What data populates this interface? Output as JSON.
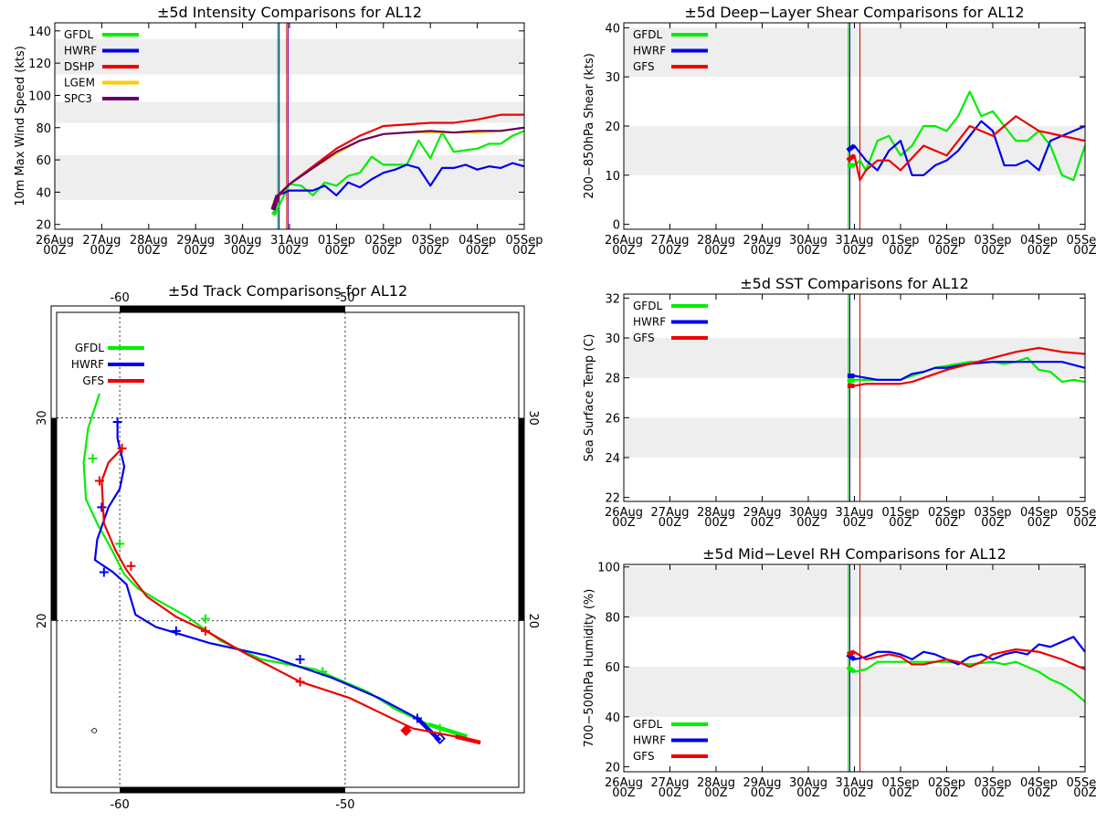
{
  "x_labels": [
    "26Aug",
    "27Aug",
    "28Aug",
    "29Aug",
    "30Aug",
    "31Aug",
    "01Sep",
    "02Sep",
    "03Sep",
    "04Sep",
    "05Sep"
  ],
  "x_label_hour": "00Z",
  "colors": {
    "GFDL": "#00ee00",
    "HWRF": "#0000ee",
    "DSHP": "#ee0000",
    "LGEM": "#ffcc00",
    "SPC3": "#660066",
    "GFS": "#ee0000"
  },
  "chart_data": [
    {
      "type": "line",
      "title": "±5d Intensity Comparisons for AL12",
      "ylabel": "10m Max Wind Speed (kts)",
      "xlabel": "",
      "ylim": [
        17,
        145
      ],
      "yticks": [
        20,
        40,
        60,
        80,
        100,
        120,
        140
      ],
      "bands": [
        [
          35,
          63
        ],
        [
          83,
          96
        ],
        [
          113,
          135
        ]
      ],
      "vlines": [
        {
          "x": 4.75,
          "color": "#00aa00"
        },
        {
          "x": 4.78,
          "color": "#0000cc"
        },
        {
          "x": 4.94,
          "color": "#cc0000"
        },
        {
          "x": 4.97,
          "color": "#880088"
        }
      ],
      "legend": [
        "GFDL",
        "HWRF",
        "DSHP",
        "LGEM",
        "SPC3"
      ],
      "series": [
        {
          "name": "GFDL",
          "x": [
            4.65,
            4.75,
            5.0,
            5.25,
            5.5,
            5.75,
            6.0,
            6.25,
            6.5,
            6.75,
            7.0,
            7.25,
            7.5,
            7.75,
            8.0,
            8.25,
            8.5,
            8.75,
            9.0,
            9.25,
            9.5,
            9.75,
            10.0
          ],
          "y": [
            26,
            30,
            45,
            44,
            38,
            46,
            44,
            50,
            52,
            62,
            57,
            57,
            57,
            72,
            61,
            77,
            65,
            66,
            67,
            70,
            70,
            75,
            78
          ]
        },
        {
          "name": "HWRF",
          "x": [
            4.65,
            4.75,
            5.0,
            5.25,
            5.5,
            5.75,
            6.0,
            6.25,
            6.5,
            6.75,
            7.0,
            7.25,
            7.5,
            7.75,
            8.0,
            8.25,
            8.5,
            8.75,
            9.0,
            9.25,
            9.5,
            9.75,
            10.0
          ],
          "y": [
            29,
            38,
            41,
            41,
            41,
            44,
            38,
            46,
            43,
            48,
            52,
            54,
            57,
            55,
            44,
            55,
            55,
            57,
            54,
            56,
            55,
            58,
            56
          ]
        },
        {
          "name": "DSHP",
          "x": [
            4.65,
            4.75,
            5.0,
            5.5,
            6.0,
            6.5,
            7.0,
            7.5,
            8.0,
            8.5,
            9.0,
            9.5,
            10.0
          ],
          "y": [
            30,
            37,
            45,
            56,
            67,
            75,
            81,
            82,
            83,
            83,
            85,
            88,
            88
          ]
        },
        {
          "name": "LGEM",
          "x": [
            4.65,
            4.75,
            5.0,
            5.5,
            6.0,
            6.5,
            7.0,
            7.5,
            8.0,
            8.5,
            9.0,
            9.5,
            10.0
          ],
          "y": [
            29,
            38,
            45,
            55,
            64,
            72,
            76,
            77,
            77,
            77,
            77,
            78,
            80
          ]
        },
        {
          "name": "SPC3",
          "x": [
            4.65,
            4.75,
            5.0,
            5.5,
            6.0,
            6.5,
            7.0,
            7.5,
            8.0,
            8.5,
            9.0,
            9.5,
            10.0
          ],
          "y": [
            29,
            38,
            45,
            55,
            65,
            72,
            76,
            77,
            78,
            77,
            78,
            78,
            80
          ]
        }
      ]
    },
    {
      "type": "line",
      "title": "±5d Deep−Layer Shear Comparisons for AL12",
      "ylabel": "200−850hPa Shear (kts)",
      "xlabel": "",
      "ylim": [
        -1,
        41
      ],
      "yticks": [
        0,
        10,
        20,
        30,
        40
      ],
      "bands": [
        [
          10,
          20
        ],
        [
          30,
          40
        ]
      ],
      "vlines": [
        {
          "x": 4.87,
          "color": "#00aa00"
        },
        {
          "x": 4.9,
          "color": "#0000cc"
        },
        {
          "x": 5.12,
          "color": "#cc0000"
        }
      ],
      "legend": [
        "GFDL",
        "HWRF",
        "GFS"
      ],
      "series": [
        {
          "name": "GFDL",
          "x": [
            4.85,
            5.0,
            5.12,
            5.25,
            5.5,
            5.75,
            6.0,
            6.25,
            6.5,
            6.75,
            7.0,
            7.25,
            7.5,
            7.75,
            8.0,
            8.25,
            8.5,
            8.75,
            9.0,
            9.25,
            9.5,
            9.75,
            10.0
          ],
          "y": [
            12,
            12,
            13,
            11,
            17,
            18,
            14,
            16,
            20,
            20,
            19,
            22,
            27,
            22,
            23,
            20,
            17,
            17,
            19,
            16,
            10,
            9,
            16
          ]
        },
        {
          "name": "HWRF",
          "x": [
            4.85,
            5.0,
            5.25,
            5.5,
            5.75,
            6.0,
            6.25,
            6.5,
            6.75,
            7.0,
            7.25,
            7.5,
            7.75,
            8.0,
            8.25,
            8.5,
            8.75,
            9.0,
            9.25,
            9.5,
            9.75,
            10.0
          ],
          "y": [
            15,
            16,
            13,
            11,
            15,
            17,
            10,
            10,
            12,
            13,
            15,
            18,
            21,
            19,
            12,
            12,
            13,
            11,
            17,
            18,
            19,
            20
          ]
        },
        {
          "name": "GFS",
          "x": [
            4.85,
            5.0,
            5.12,
            5.25,
            5.5,
            5.75,
            6.0,
            6.5,
            7.0,
            7.5,
            8.0,
            8.5,
            9.0,
            9.5,
            10.0
          ],
          "y": [
            13,
            14,
            9,
            11,
            13,
            13,
            11,
            16,
            14,
            20,
            18,
            22,
            19,
            18,
            17
          ]
        }
      ]
    },
    {
      "type": "line",
      "title": "±5d Track Comparisons for AL12",
      "xlabel": "",
      "ylabel": "",
      "xlim": [
        -62.8,
        -42.3
      ],
      "ylim": [
        11.8,
        35.2
      ],
      "lon_ticks": [
        -60,
        -50
      ],
      "lat_ticks": [
        20,
        30
      ],
      "legend": [
        "GFDL",
        "HWRF",
        "GFS"
      ],
      "series": [
        {
          "name": "GFDL",
          "lon": [
            -60.9,
            -61.4,
            -61.6,
            -61.5,
            -61.0,
            -60.4,
            -59.8,
            -59.2,
            -58.3,
            -57.0,
            -55.5,
            -53.7,
            -51.3,
            -49.0,
            -47.7,
            -46.3,
            -44.6
          ],
          "lat": [
            31.2,
            29.5,
            27.8,
            26.0,
            24.8,
            23.6,
            22.3,
            21.6,
            21.0,
            20.2,
            19.0,
            18.1,
            17.6,
            16.5,
            15.6,
            14.9,
            14.3
          ],
          "markers": [
            [
              -61.2,
              28.0
            ],
            [
              -60.0,
              23.8
            ],
            [
              -56.2,
              20.1
            ],
            [
              -51.0,
              17.5
            ],
            [
              -45.8,
              14.7
            ]
          ]
        },
        {
          "name": "HWRF",
          "lon": [
            -60.1,
            -60.1,
            -59.8,
            -60.0,
            -60.5,
            -61.0,
            -61.1,
            -60.3,
            -59.7,
            -59.3,
            -58.4,
            -56.0,
            -53.5,
            -50.6,
            -48.5,
            -46.8,
            -45.8
          ],
          "lat": [
            29.8,
            29.0,
            27.6,
            26.5,
            25.6,
            24.0,
            23.0,
            22.4,
            21.8,
            20.3,
            19.7,
            18.9,
            18.3,
            17.2,
            16.2,
            15.2,
            14.1
          ],
          "markers": [
            [
              -60.1,
              29.8
            ],
            [
              -60.8,
              25.6
            ],
            [
              -60.7,
              22.4
            ],
            [
              -57.5,
              19.5
            ],
            [
              -52.0,
              18.1
            ],
            [
              -46.8,
              15.2
            ]
          ],
          "diamond": [
            -45.8,
            14.2
          ]
        },
        {
          "name": "GFS",
          "lon": [
            -59.9,
            -60.5,
            -60.8,
            -60.7,
            -60.2,
            -59.7,
            -58.8,
            -57.5,
            -56.0,
            -54.6,
            -52.0,
            -49.8,
            -47.0,
            -45.1,
            -44.0
          ],
          "lat": [
            28.5,
            27.8,
            26.9,
            24.8,
            23.5,
            22.5,
            21.2,
            20.2,
            19.4,
            18.5,
            17.0,
            16.2,
            14.7,
            14.3,
            14.0
          ],
          "markers": [
            [
              -59.9,
              28.5
            ],
            [
              -60.9,
              26.9
            ],
            [
              -59.5,
              22.7
            ],
            [
              -56.2,
              19.5
            ],
            [
              -52.0,
              17.0
            ]
          ],
          "diamond": [
            -47.3,
            14.6
          ]
        }
      ]
    },
    {
      "type": "line",
      "title": "±5d SST Comparisons for AL12",
      "ylabel": "Sea Surface Temp (C)",
      "xlabel": "",
      "ylim": [
        21.8,
        32.2
      ],
      "yticks": [
        22,
        24,
        26,
        28,
        30,
        32
      ],
      "bands": [
        [
          24,
          26
        ],
        [
          28,
          30
        ]
      ],
      "vlines": [
        {
          "x": 4.87,
          "color": "#00aa00"
        },
        {
          "x": 4.9,
          "color": "#0000cc"
        },
        {
          "x": 5.12,
          "color": "#cc0000"
        }
      ],
      "legend": [
        "GFDL",
        "HWRF",
        "GFS"
      ],
      "series": [
        {
          "name": "GFDL",
          "x": [
            4.85,
            5.0,
            5.25,
            5.5,
            5.75,
            6.0,
            6.25,
            6.5,
            6.75,
            7.0,
            7.25,
            7.5,
            7.75,
            8.0,
            8.25,
            8.5,
            8.75,
            9.0,
            9.25,
            9.5,
            9.75,
            10.0
          ],
          "y": [
            27.8,
            27.9,
            27.9,
            27.9,
            27.9,
            27.9,
            28.1,
            28.3,
            28.5,
            28.6,
            28.7,
            28.8,
            28.8,
            28.8,
            28.7,
            28.8,
            29.0,
            28.4,
            28.3,
            27.8,
            27.9,
            27.8
          ]
        },
        {
          "name": "HWRF",
          "x": [
            4.85,
            5.0,
            5.25,
            5.5,
            5.75,
            6.0,
            6.25,
            6.5,
            6.75,
            7.0,
            7.5,
            8.0,
            8.5,
            9.0,
            9.5,
            10.0
          ],
          "y": [
            28.1,
            28.1,
            28.0,
            27.9,
            27.9,
            27.9,
            28.2,
            28.3,
            28.5,
            28.5,
            28.7,
            28.8,
            28.8,
            28.8,
            28.8,
            28.5
          ]
        },
        {
          "name": "GFS",
          "x": [
            4.85,
            5.0,
            5.25,
            5.5,
            6.0,
            6.25,
            6.5,
            7.0,
            7.5,
            8.0,
            8.5,
            9.0,
            9.5,
            10.0
          ],
          "y": [
            27.6,
            27.6,
            27.7,
            27.7,
            27.7,
            27.8,
            28.0,
            28.4,
            28.7,
            29.0,
            29.3,
            29.5,
            29.3,
            29.2
          ]
        }
      ]
    },
    {
      "type": "line",
      "title": "±5d Mid−Level RH Comparisons for AL12",
      "ylabel": "700−500hPa Humidity (%)",
      "xlabel": "",
      "ylim": [
        18,
        101
      ],
      "yticks": [
        20,
        40,
        60,
        80,
        100
      ],
      "bands": [
        [
          40,
          60
        ],
        [
          80,
          100
        ]
      ],
      "vlines": [
        {
          "x": 4.87,
          "color": "#00aa00"
        },
        {
          "x": 4.9,
          "color": "#0000cc"
        },
        {
          "x": 5.12,
          "color": "#cc0000"
        }
      ],
      "legend": [
        "GFDL",
        "HWRF",
        "GFS"
      ],
      "series": [
        {
          "name": "GFDL",
          "x": [
            4.85,
            5.0,
            5.25,
            5.5,
            6.0,
            6.5,
            7.0,
            7.5,
            8.0,
            8.25,
            8.5,
            8.75,
            9.0,
            9.25,
            9.5,
            9.75,
            10.0
          ],
          "y": [
            60,
            58,
            59,
            62,
            62,
            62,
            62,
            61,
            62,
            61,
            62,
            60,
            58,
            55,
            53,
            50,
            46
          ]
        },
        {
          "name": "HWRF",
          "x": [
            4.85,
            5.0,
            5.25,
            5.5,
            5.75,
            6.0,
            6.25,
            6.5,
            6.75,
            7.0,
            7.25,
            7.5,
            7.75,
            8.0,
            8.25,
            8.5,
            8.75,
            9.0,
            9.25,
            9.5,
            9.75,
            10.0
          ],
          "y": [
            65,
            63,
            64,
            66,
            66,
            65,
            63,
            66,
            65,
            63,
            61,
            64,
            65,
            63,
            65,
            66,
            65,
            69,
            68,
            70,
            72,
            66
          ]
        },
        {
          "name": "GFS",
          "x": [
            4.85,
            5.0,
            5.25,
            5.5,
            5.75,
            6.0,
            6.25,
            6.5,
            6.75,
            7.0,
            7.25,
            7.5,
            7.75,
            8.0,
            8.5,
            9.0,
            9.5,
            10.0
          ],
          "y": [
            65,
            66,
            63,
            64,
            65,
            64,
            61,
            61,
            62,
            63,
            62,
            60,
            62,
            65,
            67,
            66,
            63,
            59
          ]
        }
      ]
    }
  ]
}
